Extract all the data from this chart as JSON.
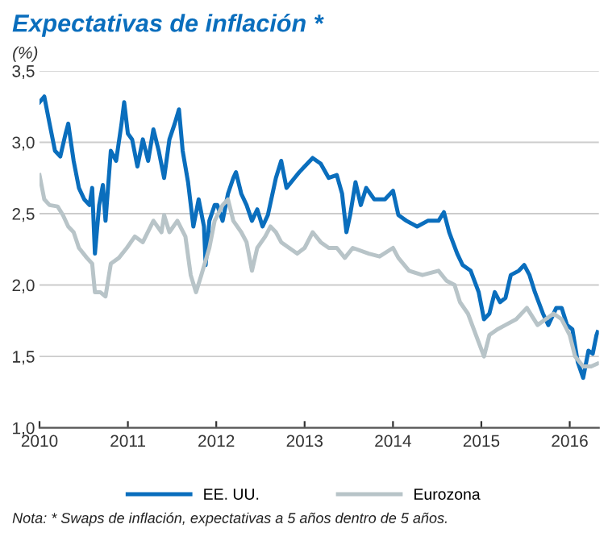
{
  "chart_data": {
    "type": "line",
    "title": "Expectativas de inflación *",
    "ylabel": "(%)",
    "xlim": [
      2010,
      2016.33
    ],
    "xticks": [
      2010,
      2011,
      2012,
      2013,
      2014,
      2015,
      2016
    ],
    "ylim": [
      1.0,
      3.5
    ],
    "yticks": [
      {
        "value": 1.0,
        "label": "1,0"
      },
      {
        "value": 1.5,
        "label": "1,5"
      },
      {
        "value": 2.0,
        "label": "2,0"
      },
      {
        "value": 2.5,
        "label": "2,5"
      },
      {
        "value": 3.0,
        "label": "3,0"
      },
      {
        "value": 3.5,
        "label": "3,5"
      }
    ],
    "grid": "y",
    "legend": "bottom",
    "marker": "none",
    "line_style": "solid",
    "annotations": [
      "Nota: * Swaps de inflación, expectativas a 5 años dentro de 5 años."
    ],
    "series": [
      {
        "name": "EE. UU.",
        "color": "#0a6ebd",
        "x": [
          2010.0,
          2010.054,
          2010.114,
          2010.175,
          2010.235,
          2010.295,
          2010.325,
          2010.386,
          2010.446,
          2010.506,
          2010.566,
          2010.596,
          2010.627,
          2010.675,
          2010.717,
          2010.747,
          2010.807,
          2010.867,
          2010.928,
          2010.958,
          2011.0,
          2011.048,
          2011.108,
          2011.169,
          2011.229,
          2011.289,
          2011.349,
          2011.41,
          2011.47,
          2011.53,
          2011.578,
          2011.62,
          2011.681,
          2011.741,
          2011.801,
          2011.861,
          2011.88,
          2011.922,
          2011.982,
          2012.012,
          2012.072,
          2012.133,
          2012.193,
          2012.223,
          2012.283,
          2012.343,
          2012.404,
          2012.464,
          2012.524,
          2012.584,
          2012.675,
          2012.735,
          2012.795,
          2012.886,
          2012.939,
          2013.0,
          2013.091,
          2013.182,
          2013.273,
          2013.364,
          2013.424,
          2013.473,
          2013.515,
          2013.576,
          2013.636,
          2013.697,
          2013.788,
          2013.909,
          2014.0,
          2014.061,
          2014.152,
          2014.273,
          2014.394,
          2014.515,
          2014.576,
          2014.636,
          2014.727,
          2014.788,
          2014.879,
          2014.97,
          2015.03,
          2015.091,
          2015.152,
          2015.212,
          2015.273,
          2015.333,
          2015.424,
          2015.485,
          2015.545,
          2015.606,
          2015.697,
          2015.758,
          2015.848,
          2015.909,
          2015.97,
          2016.03,
          2016.091,
          2016.152,
          2016.212,
          2016.261,
          2016.303,
          2016.315
        ],
        "values": [
          3.28,
          3.32,
          3.13,
          2.94,
          2.9,
          3.06,
          3.13,
          2.87,
          2.68,
          2.6,
          2.56,
          2.68,
          2.22,
          2.56,
          2.7,
          2.45,
          2.94,
          2.87,
          3.13,
          3.28,
          3.06,
          3.02,
          2.83,
          3.02,
          2.87,
          3.09,
          2.94,
          2.75,
          3.02,
          3.13,
          3.23,
          2.94,
          2.72,
          2.41,
          2.6,
          2.41,
          2.14,
          2.45,
          2.56,
          2.56,
          2.45,
          2.64,
          2.75,
          2.79,
          2.64,
          2.56,
          2.45,
          2.53,
          2.41,
          2.49,
          2.75,
          2.87,
          2.68,
          2.75,
          2.79,
          2.83,
          2.89,
          2.85,
          2.75,
          2.77,
          2.64,
          2.37,
          2.49,
          2.72,
          2.56,
          2.68,
          2.6,
          2.6,
          2.66,
          2.49,
          2.45,
          2.41,
          2.45,
          2.45,
          2.51,
          2.37,
          2.22,
          2.14,
          2.1,
          1.95,
          1.76,
          1.8,
          1.95,
          1.88,
          1.91,
          2.07,
          2.1,
          2.14,
          2.07,
          1.95,
          1.8,
          1.72,
          1.84,
          1.84,
          1.72,
          1.69,
          1.46,
          1.35,
          1.54,
          1.52,
          1.65,
          1.67
        ]
      },
      {
        "name": "Eurozona",
        "color": "#b8c4c8",
        "x": [
          2010.0,
          2010.054,
          2010.114,
          2010.205,
          2010.265,
          2010.325,
          2010.386,
          2010.446,
          2010.536,
          2010.596,
          2010.627,
          2010.687,
          2010.747,
          2010.807,
          2010.898,
          2010.988,
          2011.078,
          2011.169,
          2011.289,
          2011.38,
          2011.41,
          2011.47,
          2011.56,
          2011.651,
          2011.711,
          2011.771,
          2011.831,
          2011.922,
          2011.982,
          2012.072,
          2012.133,
          2012.193,
          2012.283,
          2012.343,
          2012.404,
          2012.464,
          2012.554,
          2012.614,
          2012.675,
          2012.735,
          2012.825,
          2012.916,
          2013.0,
          2013.091,
          2013.182,
          2013.273,
          2013.364,
          2013.455,
          2013.545,
          2013.727,
          2013.848,
          2014.0,
          2014.061,
          2014.182,
          2014.333,
          2014.515,
          2014.606,
          2014.697,
          2014.758,
          2014.848,
          2014.939,
          2015.03,
          2015.091,
          2015.182,
          2015.273,
          2015.394,
          2015.515,
          2015.636,
          2015.727,
          2015.818,
          2015.909,
          2016.0,
          2016.061,
          2016.152,
          2016.242,
          2016.315
        ],
        "values": [
          2.77,
          2.6,
          2.56,
          2.55,
          2.49,
          2.41,
          2.37,
          2.26,
          2.19,
          2.15,
          1.95,
          1.95,
          1.92,
          2.15,
          2.19,
          2.26,
          2.34,
          2.3,
          2.45,
          2.37,
          2.49,
          2.37,
          2.45,
          2.34,
          2.07,
          1.95,
          2.07,
          2.26,
          2.45,
          2.56,
          2.6,
          2.45,
          2.37,
          2.3,
          2.1,
          2.26,
          2.34,
          2.41,
          2.37,
          2.3,
          2.26,
          2.22,
          2.26,
          2.37,
          2.3,
          2.26,
          2.26,
          2.19,
          2.26,
          2.22,
          2.2,
          2.26,
          2.19,
          2.1,
          2.07,
          2.1,
          2.03,
          2.0,
          1.88,
          1.8,
          1.65,
          1.5,
          1.65,
          1.69,
          1.72,
          1.76,
          1.84,
          1.72,
          1.76,
          1.8,
          1.76,
          1.65,
          1.5,
          1.43,
          1.43,
          1.45
        ]
      }
    ]
  }
}
